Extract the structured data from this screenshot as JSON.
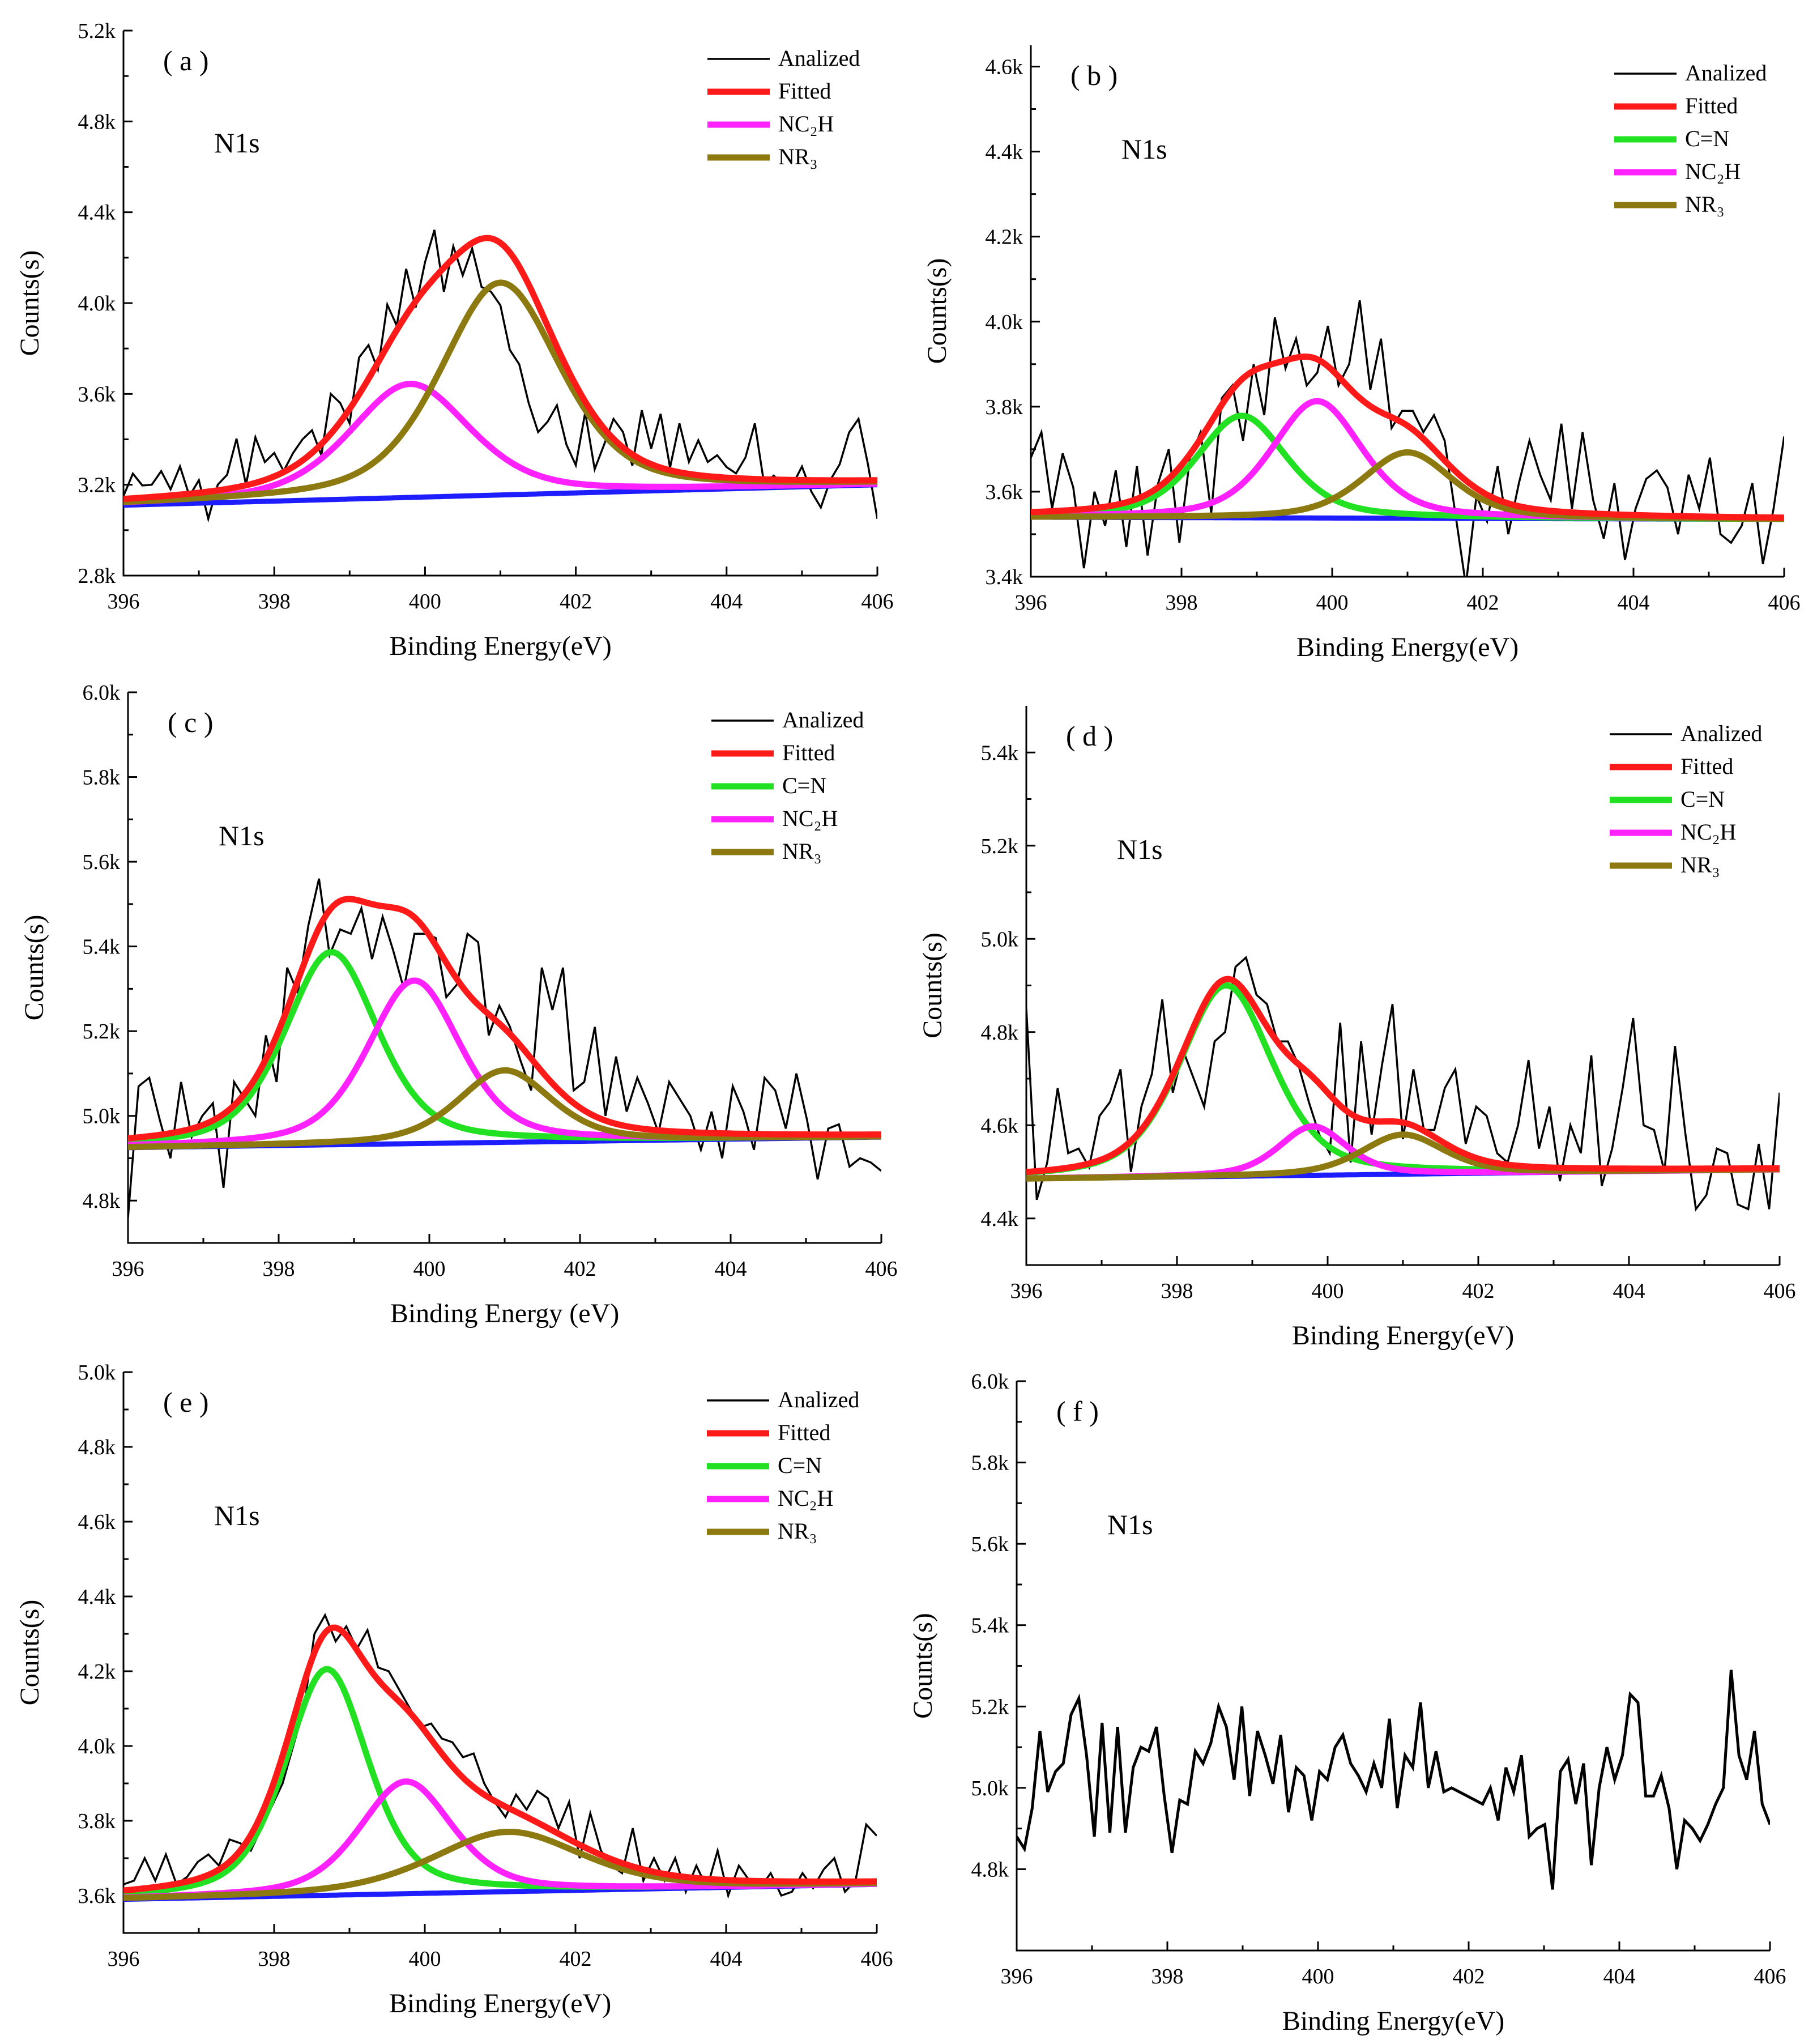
{
  "figure": {
    "xlabel_default": "Binding Energy(eV)",
    "ylabel": "Counts(s)",
    "element": "N1s"
  },
  "series_styles": {
    "Analized": {
      "color": "#000000"
    },
    "Fitted": {
      "color": "#ff1a1a"
    },
    "C=N": {
      "color": "#22e022"
    },
    "NC2H": {
      "color": "#ff22ff"
    },
    "NR3": {
      "color": "#8c7a10"
    },
    "Background": {
      "color": "#1d1dff"
    }
  },
  "chart_data": [
    {
      "type": "line",
      "panel": "( a )",
      "title": "N1s",
      "xlabel": "Binding Energy(eV)",
      "ylabel": "Counts(s)",
      "xlim": [
        396,
        406
      ],
      "ylim": [
        2800,
        5200
      ],
      "xticks": [
        396,
        398,
        400,
        402,
        404,
        406
      ],
      "yticks": [
        2800,
        3200,
        3600,
        4000,
        4400,
        4800,
        5200
      ],
      "ytick_labels": [
        "2.8k",
        "3.2k",
        "3.6k",
        "4.0k",
        "4.4k",
        "4.8k",
        "5.2k"
      ],
      "legend": [
        "Analized",
        "Fitted",
        "NC2H",
        "NR3"
      ],
      "legend_display": [
        "Analized",
        "Fitted",
        "NC₂H",
        "NR₃"
      ],
      "legend_position": "top-right",
      "bg_start": 3110,
      "bg_end": 3200,
      "components": [
        {
          "name": "NC2H",
          "center": 399.8,
          "amp": 500,
          "width": 0.8
        },
        {
          "name": "NR3",
          "center": 401.0,
          "amp": 935,
          "width": 0.8
        }
      ],
      "analized_y": [
        3150,
        3249,
        3197,
        3200,
        3260,
        3180,
        3281,
        3150,
        3220,
        3050,
        3200,
        3244,
        3403,
        3200,
        3409,
        3300,
        3340,
        3260,
        3340,
        3400,
        3440,
        3330,
        3600,
        3560,
        3470,
        3760,
        3815,
        3707,
        3993,
        3900,
        4151,
        3980,
        4180,
        4322,
        4050,
        4250,
        4122,
        4240,
        4071,
        4050,
        3990,
        3794,
        3730,
        3560,
        3432,
        3477,
        3550,
        3377,
        3286,
        3519,
        3268,
        3376,
        3490,
        3433,
        3284,
        3528,
        3359,
        3512,
        3276,
        3470,
        3301,
        3396,
        3300,
        3330,
        3278,
        3250,
        3320,
        3470,
        3200,
        3240,
        3200,
        3200,
        3280,
        3170,
        3100,
        3220,
        3290,
        3430,
        3490,
        3290,
        3050
      ]
    },
    {
      "type": "line",
      "panel": "( b )",
      "title": "N1s",
      "xlabel": "Binding Energy(eV)",
      "ylabel": "Counts(s)",
      "xlim": [
        396,
        406
      ],
      "ylim": [
        3400,
        4650
      ],
      "xticks": [
        396,
        398,
        400,
        402,
        404,
        406
      ],
      "yticks": [
        3400,
        3600,
        3800,
        4000,
        4200,
        4400,
        4600
      ],
      "ytick_labels": [
        "3.4k",
        "3.6k",
        "3.8k",
        "4.0k",
        "4.2k",
        "4.4k",
        "4.6k"
      ],
      "legend": [
        "Analized",
        "Fitted",
        "C=N",
        "NC2H",
        "NR3"
      ],
      "legend_display": [
        "Analized",
        "Fitted",
        "C=N",
        "NC₂H",
        "NR₃"
      ],
      "legend_position": "top-right",
      "bg_start": 3540,
      "bg_end": 3535,
      "components": [
        {
          "name": "C=N",
          "center": 398.8,
          "amp": 240,
          "width": 0.6
        },
        {
          "name": "NC2H",
          "center": 399.8,
          "amp": 275,
          "width": 0.6
        },
        {
          "name": "NR3",
          "center": 401.0,
          "amp": 155,
          "width": 0.6
        }
      ],
      "analized_y": [
        3680,
        3740,
        3560,
        3690,
        3610,
        3420,
        3600,
        3520,
        3650,
        3470,
        3660,
        3450,
        3620,
        3700,
        3480,
        3680,
        3740,
        3550,
        3820,
        3850,
        3720,
        3900,
        3780,
        4010,
        3890,
        3960,
        3850,
        3880,
        3990,
        3850,
        3900,
        4050,
        3840,
        3960,
        3750,
        3790,
        3790,
        3740,
        3780,
        3720,
        3550,
        3380,
        3590,
        3530,
        3660,
        3500,
        3620,
        3720,
        3640,
        3580,
        3760,
        3560,
        3740,
        3580,
        3490,
        3620,
        3440,
        3560,
        3630,
        3650,
        3610,
        3500,
        3640,
        3560,
        3680,
        3500,
        3480,
        3520,
        3620,
        3430,
        3560,
        3730
      ]
    },
    {
      "type": "line",
      "panel": "( c )",
      "title": "N1s",
      "xlabel": "Binding Energy (eV)",
      "ylabel": "Counts(s)",
      "xlim": [
        396,
        406
      ],
      "ylim": [
        4700,
        6000
      ],
      "xticks": [
        396,
        398,
        400,
        402,
        404,
        406
      ],
      "yticks": [
        4800,
        5000,
        5200,
        5400,
        5600,
        5800,
        6000
      ],
      "ytick_labels": [
        "4.8k",
        "5.0k",
        "5.2k",
        "5.4k",
        "5.6k",
        "5.8k",
        "6.0k"
      ],
      "legend": [
        "Analized",
        "Fitted",
        "C=N",
        "NC2H",
        "NR3"
      ],
      "legend_display": [
        "Analized",
        "Fitted",
        "C=N",
        "NC₂H",
        "NR₃"
      ],
      "legend_position": "top-right",
      "bg_start": 4925,
      "bg_end": 4950,
      "components": [
        {
          "name": "C=N",
          "center": 398.7,
          "amp": 455,
          "width": 0.62
        },
        {
          "name": "NC2H",
          "center": 399.8,
          "amp": 385,
          "width": 0.62
        },
        {
          "name": "NR3",
          "center": 401.0,
          "amp": 170,
          "width": 0.62
        }
      ],
      "analized_y": [
        4760,
        5070,
        5090,
        4990,
        4900,
        5080,
        4950,
        5000,
        5030,
        4830,
        5080,
        5040,
        5000,
        5190,
        5080,
        5350,
        5290,
        5450,
        5560,
        5380,
        5440,
        5430,
        5490,
        5370,
        5470,
        5390,
        5300,
        5430,
        5430,
        5420,
        5280,
        5310,
        5430,
        5410,
        5190,
        5260,
        5210,
        5130,
        5060,
        5350,
        5250,
        5350,
        5060,
        5080,
        5210,
        5000,
        5140,
        5010,
        5090,
        5030,
        4960,
        5080,
        5040,
        5000,
        4920,
        5010,
        4900,
        5070,
        5010,
        4920,
        5090,
        5060,
        4970,
        5100,
        4990,
        4850,
        4970,
        4980,
        4880,
        4900,
        4890,
        4870
      ]
    },
    {
      "type": "line",
      "panel": "( d )",
      "title": "N1s",
      "xlabel": "Binding Energy(eV)",
      "ylabel": "Counts(s)",
      "xlim": [
        396,
        406
      ],
      "ylim": [
        4300,
        5500
      ],
      "xticks": [
        396,
        398,
        400,
        402,
        404,
        406
      ],
      "yticks": [
        4400,
        4600,
        4800,
        5000,
        5200,
        5400
      ],
      "ytick_labels": [
        "4.4k",
        "4.6k",
        "4.8k",
        "5.0k",
        "5.2k",
        "5.4k"
      ],
      "legend": [
        "Analized",
        "Fitted",
        "C=N",
        "NC2H",
        "NR3"
      ],
      "legend_display": [
        "Analized",
        "Fitted",
        "C=N",
        "NC₂H",
        "NR₃"
      ],
      "legend_position": "top-right",
      "bg_start": 4485,
      "bg_end": 4505,
      "components": [
        {
          "name": "C=N",
          "center": 398.65,
          "amp": 410,
          "width": 0.62
        },
        {
          "name": "NC2H",
          "center": 399.8,
          "amp": 105,
          "width": 0.45
        },
        {
          "name": "NR3",
          "center": 401.0,
          "amp": 85,
          "width": 0.55
        }
      ],
      "analized_y": [
        4850,
        4440,
        4520,
        4680,
        4540,
        4550,
        4510,
        4620,
        4650,
        4720,
        4500,
        4640,
        4710,
        4870,
        4670,
        4760,
        4700,
        4640,
        4780,
        4800,
        4940,
        4960,
        4880,
        4860,
        4780,
        4780,
        4730,
        4650,
        4580,
        4540,
        4820,
        4520,
        4780,
        4580,
        4730,
        4860,
        4570,
        4720,
        4590,
        4590,
        4680,
        4720,
        4560,
        4640,
        4620,
        4540,
        4520,
        4600,
        4740,
        4550,
        4640,
        4480,
        4600,
        4540,
        4750,
        4470,
        4550,
        4680,
        4830,
        4600,
        4590,
        4500,
        4770,
        4580,
        4420,
        4450,
        4550,
        4540,
        4430,
        4420,
        4560,
        4420,
        4670
      ]
    },
    {
      "type": "line",
      "panel": "( e )",
      "title": "N1s",
      "xlabel": "Binding Energy(eV)",
      "ylabel": "Counts(s)",
      "xlim": [
        396,
        406
      ],
      "ylim": [
        3500,
        5000
      ],
      "xticks": [
        396,
        398,
        400,
        402,
        404,
        406
      ],
      "yticks": [
        3600,
        3800,
        4000,
        4200,
        4400,
        4600,
        4800,
        5000
      ],
      "ytick_labels": [
        "3.6k",
        "3.8k",
        "4.0k",
        "4.2k",
        "4.4k",
        "4.6k",
        "4.8k",
        "5.0k"
      ],
      "legend": [
        "Analized",
        "Fitted",
        "C=N",
        "NC2H",
        "NR3"
      ],
      "legend_display": [
        "Analized",
        "Fitted",
        "C=N",
        "NC₂H",
        "NR₃"
      ],
      "legend_position": "top-right",
      "bg_start": 3590,
      "bg_end": 3630,
      "components": [
        {
          "name": "C=N",
          "center": 398.7,
          "amp": 605,
          "width": 0.55
        },
        {
          "name": "NC2H",
          "center": 399.75,
          "amp": 300,
          "width": 0.62
        },
        {
          "name": "NR3",
          "center": 401.1,
          "amp": 160,
          "width": 1.0
        }
      ],
      "analized_y": [
        3630,
        3640,
        3700,
        3640,
        3710,
        3630,
        3650,
        3690,
        3710,
        3680,
        3750,
        3740,
        3720,
        3780,
        3840,
        3900,
        4000,
        4100,
        4300,
        4350,
        4280,
        4320,
        4260,
        4310,
        4210,
        4200,
        4150,
        4100,
        4050,
        4060,
        4020,
        4010,
        3970,
        3980,
        3900,
        3850,
        3810,
        3870,
        3830,
        3880,
        3860,
        3780,
        3850,
        3700,
        3820,
        3720,
        3680,
        3660,
        3780,
        3640,
        3700,
        3640,
        3700,
        3610,
        3680,
        3620,
        3720,
        3600,
        3680,
        3640,
        3620,
        3660,
        3600,
        3610,
        3660,
        3620,
        3670,
        3700,
        3610,
        3640,
        3790,
        3760
      ]
    },
    {
      "type": "line",
      "panel": "( f )",
      "title": "N1s",
      "xlabel": "Binding Energy(eV)",
      "ylabel": "Counts(s)",
      "xlim": [
        396,
        406
      ],
      "ylim": [
        4600,
        6000
      ],
      "xticks": [
        396,
        398,
        400,
        402,
        404,
        406
      ],
      "yticks": [
        4800,
        5000,
        5200,
        5400,
        5600,
        5800,
        6000
      ],
      "ytick_labels": [
        "4.8k",
        "5.0k",
        "5.2k",
        "5.4k",
        "5.6k",
        "5.8k",
        "6.0k"
      ],
      "legend": [],
      "legend_display": [],
      "legend_position": "none",
      "components": [],
      "analized_y": [
        4880,
        4850,
        4950,
        5140,
        4990,
        5040,
        5060,
        5180,
        5220,
        5080,
        4880,
        5160,
        4890,
        5150,
        4890,
        5050,
        5100,
        5090,
        5150,
        4980,
        4840,
        4970,
        4960,
        5090,
        5060,
        5110,
        5200,
        5150,
        5020,
        5200,
        4980,
        5140,
        5080,
        5010,
        5130,
        4940,
        5050,
        5030,
        4920,
        5040,
        5020,
        5100,
        5130,
        5060,
        5030,
        4990,
        5060,
        5000,
        5170,
        4950,
        5080,
        5050,
        5210,
        5000,
        5090,
        4990,
        5000,
        4990,
        4980,
        4970,
        4960,
        5000,
        4920,
        5050,
        4990,
        5080,
        4880,
        4900,
        4910,
        4750,
        5040,
        5070,
        4960,
        5060,
        4810,
        5000,
        5100,
        5020,
        5080,
        5230,
        5210,
        4980,
        4980,
        5030,
        4950,
        4800,
        4920,
        4900,
        4870,
        4910,
        4960,
        5000,
        5290,
        5080,
        5020,
        5140,
        4960,
        4910
      ]
    }
  ]
}
